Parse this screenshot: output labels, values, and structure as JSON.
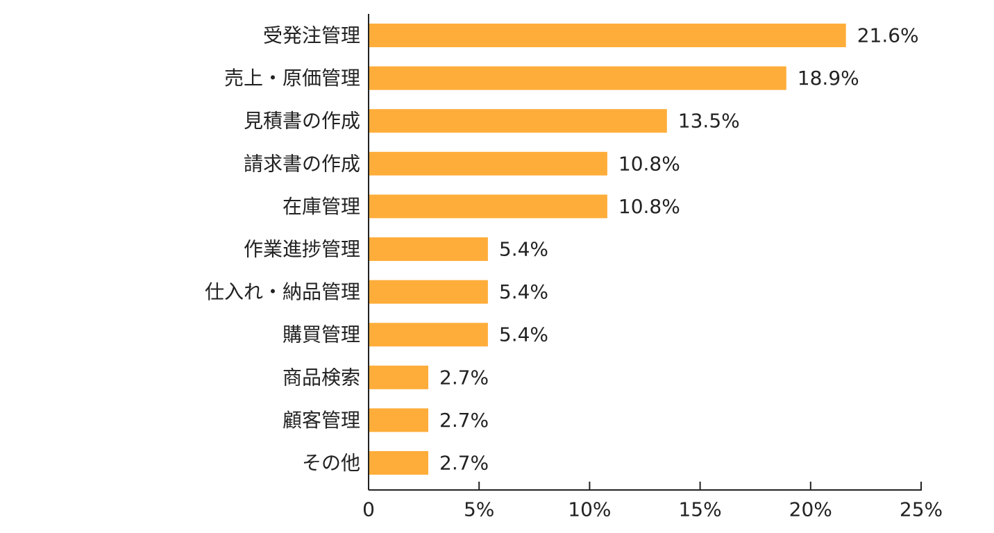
{
  "chart_data": {
    "type": "bar",
    "orientation": "horizontal",
    "categories": [
      "受発注管理",
      "売上・原価管理",
      "見積書の作成",
      "請求書の作成",
      "在庫管理",
      "作業進捗管理",
      "仕入れ・納品管理",
      "購買管理",
      "商品検索",
      "顧客管理",
      "その他"
    ],
    "values": [
      21.6,
      18.9,
      13.5,
      10.8,
      10.8,
      5.4,
      5.4,
      5.4,
      2.7,
      2.7,
      2.7
    ],
    "data_labels": [
      "21.6%",
      "18.9%",
      "13.5%",
      "10.8%",
      "10.8%",
      "5.4%",
      "5.4%",
      "5.4%",
      "2.7%",
      "2.7%",
      "2.7%"
    ],
    "xlim": [
      0,
      25
    ],
    "x_ticks": [
      0,
      5,
      10,
      15,
      20,
      25
    ],
    "x_tick_labels": [
      "0",
      "5%",
      "10%",
      "15%",
      "20%",
      "25%"
    ],
    "grid": false,
    "legend": "none",
    "bar_color": "#FFAD3A",
    "axis_color": "#222222",
    "text_color": "#222222"
  }
}
